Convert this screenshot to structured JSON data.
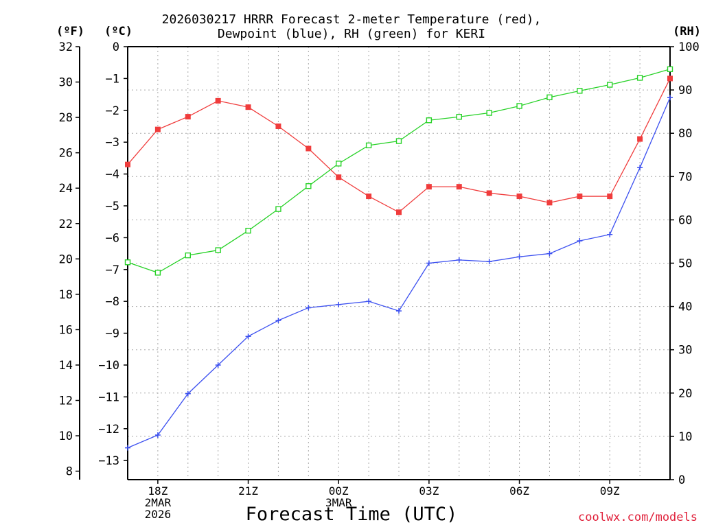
{
  "title_line1": "2026030217 HRRR Forecast 2-meter Temperature (red),",
  "title_line2": "Dewpoint (blue), RH (green) for KERI",
  "unit_f": "(ºF)",
  "unit_c": "(ºC)",
  "unit_rh": "(RH)",
  "xlabel": "Forecast Time (UTC)",
  "credit": "coolwx.com/models",
  "chart_data": {
    "type": "line",
    "title": "2026030217 HRRR Forecast 2-meter Temperature (red), Dewpoint (blue), RH (green) for KERI",
    "xlabel": "Forecast Time (UTC)",
    "x_hours_utc": [
      "17Z",
      "18Z",
      "19Z",
      "20Z",
      "21Z",
      "22Z",
      "23Z",
      "00Z",
      "01Z",
      "02Z",
      "03Z",
      "04Z",
      "05Z",
      "06Z",
      "07Z",
      "08Z",
      "09Z",
      "10Z",
      "11Z"
    ],
    "x_tick_labels": [
      {
        "at": "18Z",
        "lines": [
          "18Z",
          "2MAR",
          "2026"
        ]
      },
      {
        "at": "21Z",
        "lines": [
          "21Z"
        ]
      },
      {
        "at": "00Z",
        "lines": [
          "00Z",
          "3MAR"
        ]
      },
      {
        "at": "03Z",
        "lines": [
          "03Z"
        ]
      },
      {
        "at": "06Z",
        "lines": [
          "06Z"
        ]
      },
      {
        "at": "09Z",
        "lines": [
          "09Z"
        ]
      }
    ],
    "y_left_f": {
      "label": "(ºF)",
      "range": [
        7.5,
        32.5
      ],
      "ticks": [
        8,
        10,
        12,
        14,
        16,
        18,
        20,
        22,
        24,
        26,
        28,
        30,
        32
      ]
    },
    "y_left_c": {
      "label": "(ºC)",
      "range": [
        -13.6,
        0
      ],
      "ticks": [
        0,
        -1,
        -2,
        -3,
        -4,
        -5,
        -6,
        -7,
        -8,
        -9,
        -10,
        -11,
        -12,
        -13
      ]
    },
    "y_right_rh": {
      "label": "(RH)",
      "range": [
        0,
        100
      ],
      "ticks": [
        0,
        10,
        20,
        30,
        40,
        50,
        60,
        70,
        80,
        90,
        100
      ]
    },
    "grid": true,
    "series": [
      {
        "name": "Temperature",
        "unit": "°C",
        "color": "#f03c3c",
        "marker": "filled-square",
        "values": [
          -3.7,
          -2.6,
          -2.2,
          -1.7,
          -1.9,
          -2.5,
          -3.2,
          -4.1,
          -4.7,
          -5.2,
          -4.4,
          -4.4,
          -4.6,
          -4.7,
          -4.9,
          -4.7,
          -4.7,
          -2.9,
          -1.0
        ]
      },
      {
        "name": "Dewpoint",
        "unit": "°C",
        "color": "#3c50f0",
        "marker": "plus",
        "values": [
          -12.6,
          -12.2,
          -10.9,
          -10.0,
          -9.1,
          -8.6,
          -8.2,
          -8.1,
          -8.0,
          -8.3,
          -6.8,
          -6.7,
          -6.75,
          -6.6,
          -6.5,
          -6.1,
          -5.9,
          -3.8,
          -1.6
        ]
      },
      {
        "name": "RH",
        "unit": "%",
        "color": "#28d228",
        "marker": "open-square",
        "values": [
          50.2,
          47.8,
          51.8,
          53.0,
          57.5,
          62.5,
          67.8,
          73.0,
          77.2,
          78.2,
          83.0,
          83.8,
          84.7,
          86.3,
          88.3,
          89.8,
          91.2,
          92.8,
          94.8
        ]
      }
    ]
  }
}
